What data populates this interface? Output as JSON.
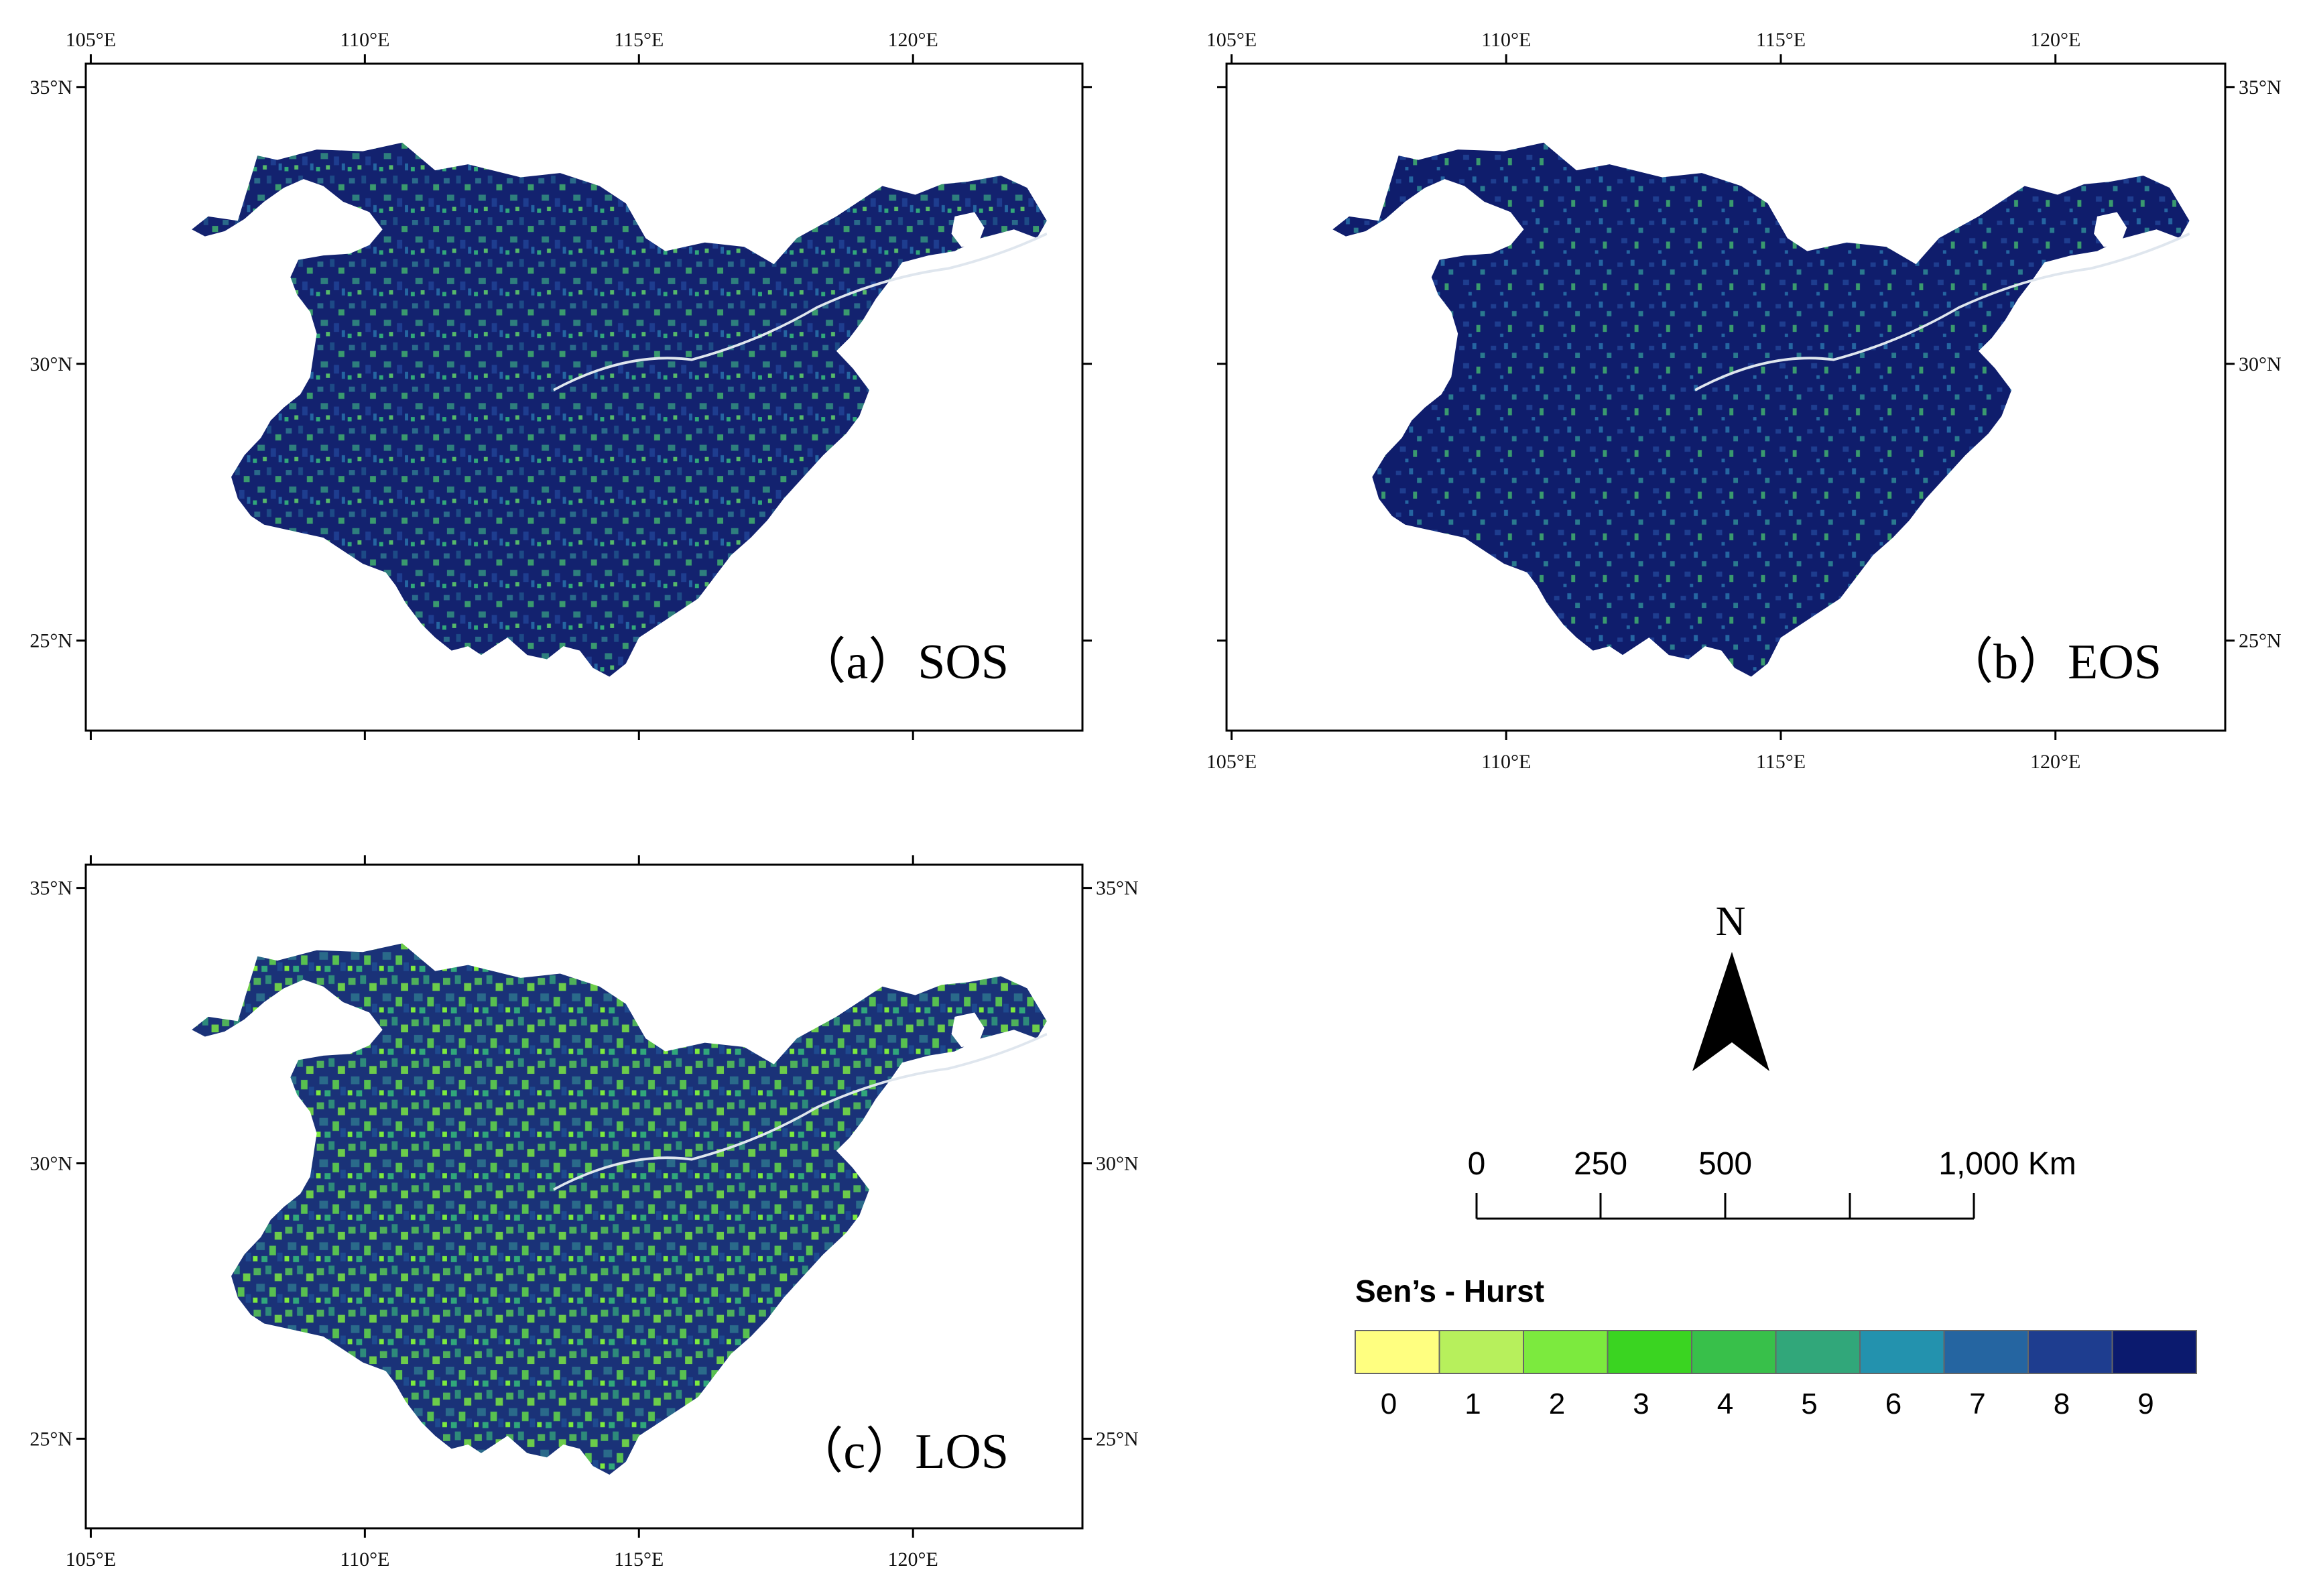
{
  "panels": [
    {
      "id": "a",
      "caption": "（a）SOS",
      "top_labels": [
        "105°E",
        "110°E",
        "115°E",
        "120°E"
      ],
      "bottom_labels": [],
      "left_labels": [
        "35°N",
        "30°N",
        "25°N"
      ],
      "right_labels": []
    },
    {
      "id": "b",
      "caption": "（b）EOS",
      "top_labels": [
        "105°E",
        "110°E",
        "115°E",
        "120°E"
      ],
      "bottom_labels": [
        "105°E",
        "110°E",
        "115°E",
        "120°E"
      ],
      "left_labels": [],
      "right_labels": [
        "35°N",
        "30°N",
        "25°N"
      ]
    },
    {
      "id": "c",
      "caption": "（c）LOS",
      "top_labels": [],
      "bottom_labels": [
        "105°E",
        "110°E",
        "115°E",
        "120°E"
      ],
      "left_labels": [
        "35°N",
        "30°N",
        "25°N"
      ],
      "right_labels": [
        "35°N",
        "30°N",
        "25°N"
      ]
    }
  ],
  "north_arrow": {
    "label": "N"
  },
  "scale_bar": {
    "labels": [
      "0",
      "250",
      "500",
      "1,000 Km"
    ]
  },
  "legend": {
    "title": "Sen’s - Hurst",
    "classes": [
      {
        "label": "0",
        "color": "#ffff80"
      },
      {
        "label": "1",
        "color": "#b7f05c"
      },
      {
        "label": "2",
        "color": "#7cea3e"
      },
      {
        "label": "3",
        "color": "#3ad421"
      },
      {
        "label": "4",
        "color": "#38c04a"
      },
      {
        "label": "5",
        "color": "#31a77a"
      },
      {
        "label": "6",
        "color": "#2392ae"
      },
      {
        "label": "7",
        "color": "#2565a1"
      },
      {
        "label": "8",
        "color": "#1e3d8f"
      },
      {
        "label": "9",
        "color": "#0b1a6e"
      }
    ]
  }
}
